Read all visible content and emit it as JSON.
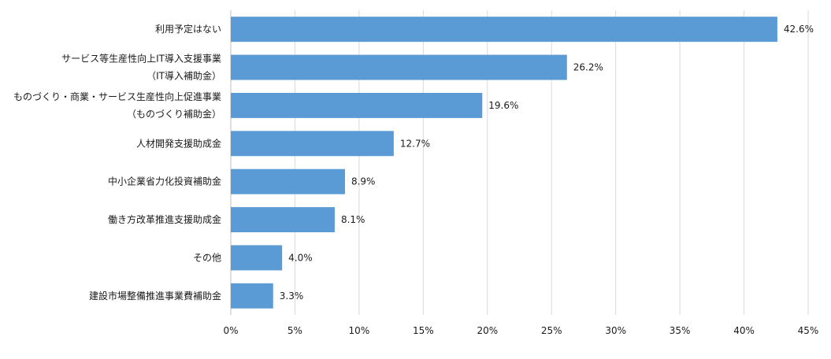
{
  "chart_data": {
    "type": "bar",
    "orientation": "horizontal",
    "categories": [
      [
        "利用予定はない"
      ],
      [
        "サービス等生産性向上IT導入支援事業",
        "（IT導入補助金）"
      ],
      [
        "ものづくり・商業・サービス生産性向上促進事業",
        "（ものづくり補助金）"
      ],
      [
        "人材開発支援助成金"
      ],
      [
        "中小企業省力化投資補助金"
      ],
      [
        "働き方改革推進支援助成金"
      ],
      [
        "その他"
      ],
      [
        "建設市場整備推進事業費補助金"
      ]
    ],
    "values": [
      42.6,
      26.2,
      19.6,
      12.7,
      8.9,
      8.1,
      4.0,
      3.3
    ],
    "value_labels": [
      "42.6%",
      "26.2%",
      "19.6%",
      "12.7%",
      "8.9%",
      "8.1%",
      "4.0%",
      "3.3%"
    ],
    "xlim": [
      0,
      45
    ],
    "xticks": [
      0,
      5,
      10,
      15,
      20,
      25,
      30,
      35,
      40,
      45
    ],
    "xtick_labels": [
      "0%",
      "5%",
      "10%",
      "15%",
      "20%",
      "25%",
      "30%",
      "35%",
      "40%",
      "45%"
    ],
    "grid": true,
    "bar_color": "#5b9bd5",
    "title": "",
    "xlabel": "",
    "ylabel": ""
  }
}
